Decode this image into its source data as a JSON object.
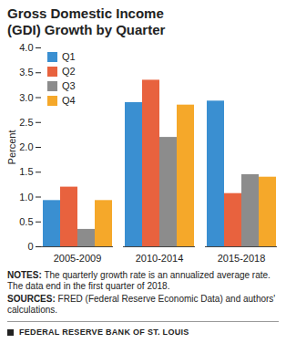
{
  "chart_data": {
    "type": "bar",
    "title": "Gross Domestic Income (GDI) Growth by Quarter",
    "categories": [
      "2005-2009",
      "2010-2014",
      "2015-2018"
    ],
    "series": [
      {
        "name": "Q1",
        "color": "#3a8fd1",
        "values": [
          0.93,
          2.9,
          2.93
        ]
      },
      {
        "name": "Q2",
        "color": "#e8623e",
        "values": [
          1.2,
          3.35,
          1.07
        ]
      },
      {
        "name": "Q3",
        "color": "#8c8c8c",
        "values": [
          0.35,
          2.2,
          1.45
        ]
      },
      {
        "name": "Q4",
        "color": "#f5a82a",
        "values": [
          0.93,
          2.85,
          1.4
        ]
      }
    ],
    "y_label": "Percent",
    "ylim": [
      0,
      4
    ],
    "yticks": [
      0,
      0.5,
      {
        "value": 1,
        "label": "1.0"
      },
      1.5,
      {
        "value": 2,
        "label": "2.0"
      },
      2.5,
      {
        "value": 3,
        "label": "3.0"
      },
      3.5,
      {
        "value": 4,
        "label": "4.0"
      }
    ],
    "grid": false,
    "legend": "top-left",
    "notes": "NOTES: The quarterly growth rate is an annualized average rate. The data end in the first quarter of 2018.",
    "sources": "SOURCES: FRED (Federal Reserve Economic Data) and authors' calculations.",
    "footer": "FEDERAL RESERVE BANK OF ST. LOUIS"
  }
}
